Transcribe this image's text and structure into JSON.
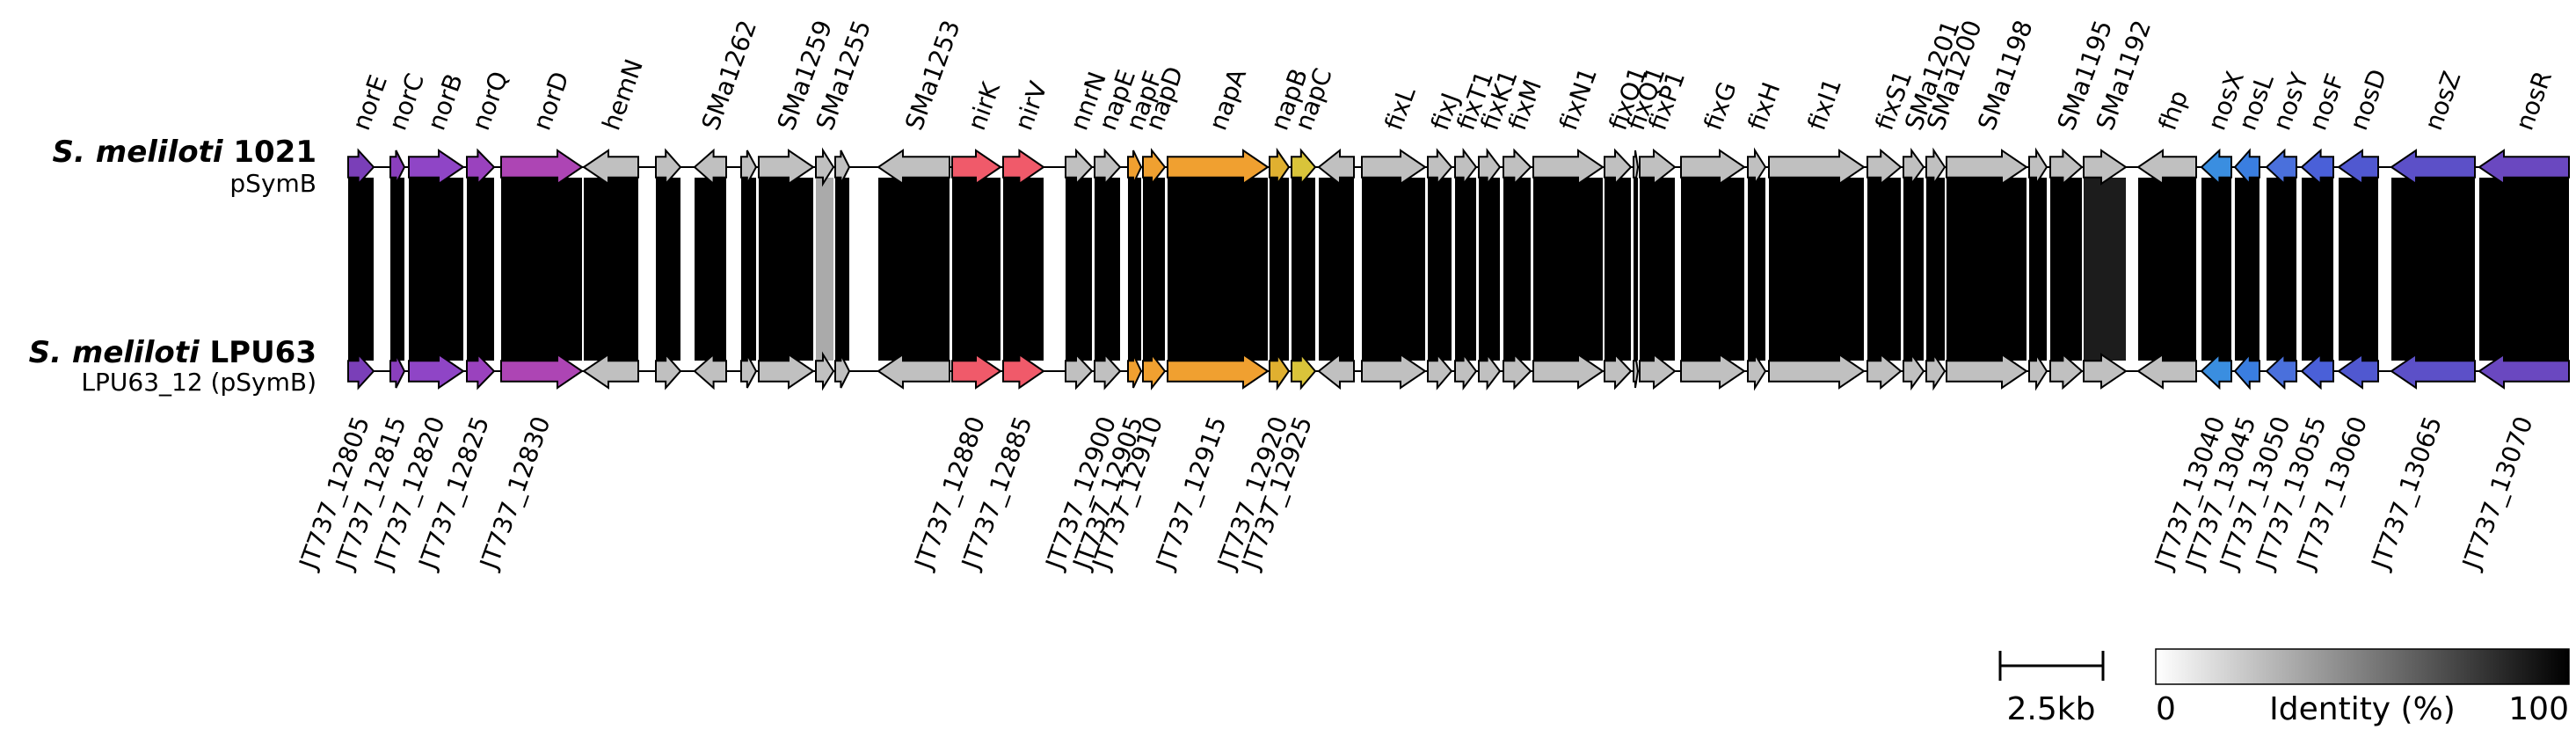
{
  "genomes": [
    {
      "name_italic": "S. meliloti",
      "name_strain": "1021",
      "subtitle": "pSymB"
    },
    {
      "name_italic": "S. meliloti",
      "name_strain": "LPU63",
      "subtitle": "LPU63_12 (pSymB)"
    }
  ],
  "genes": [
    {
      "label": "norE",
      "dir": 1,
      "color": "#7a3fb8"
    },
    {
      "label": "",
      "dir": 0,
      "color": "#ffffff"
    },
    {
      "label": "norC",
      "dir": 1,
      "color": "#8a3fbd"
    },
    {
      "label": "norB",
      "dir": 1,
      "color": "#8f45c6"
    },
    {
      "label": "norQ",
      "dir": 1,
      "color": "#9a42be"
    },
    {
      "label": "norD",
      "dir": 1,
      "color": "#ad45b4"
    },
    {
      "label": "hemN",
      "dir": -1,
      "color": "#c0c0c0"
    },
    {
      "label": "",
      "dir": 1,
      "color": "#c0c0c0"
    },
    {
      "label": "SMa1262",
      "dir": -1,
      "color": "#c0c0c0"
    },
    {
      "label": "",
      "dir": 1,
      "color": "#c0c0c0"
    },
    {
      "label": "SMa1259",
      "dir": 1,
      "color": "#c0c0c0"
    },
    {
      "label": "SMa1255",
      "dir": 1,
      "color": "#c0c0c0"
    },
    {
      "label": "",
      "dir": 1,
      "color": "#c0c0c0"
    },
    {
      "label": "SMa1253",
      "dir": -1,
      "color": "#c0c0c0"
    },
    {
      "label": "nirK",
      "dir": 1,
      "color": "#f05a6a"
    },
    {
      "label": "nirV",
      "dir": 1,
      "color": "#f05a6a"
    },
    {
      "label": "nnrN",
      "dir": 1,
      "color": "#c0c0c0"
    },
    {
      "label": "napE",
      "dir": 1,
      "color": "#c0c0c0"
    },
    {
      "label": "napF",
      "dir": 1,
      "color": "#f0a030"
    },
    {
      "label": "napD",
      "dir": 1,
      "color": "#f0a030"
    },
    {
      "label": "napA",
      "dir": 1,
      "color": "#f0a030"
    },
    {
      "label": "napB",
      "dir": 1,
      "color": "#e0b030"
    },
    {
      "label": "napC",
      "dir": 1,
      "color": "#d9c43a"
    },
    {
      "label": "",
      "dir": -1,
      "color": "#c0c0c0"
    },
    {
      "label": "fixL",
      "dir": 1,
      "color": "#c0c0c0"
    },
    {
      "label": "fixJ",
      "dir": 1,
      "color": "#c0c0c0"
    },
    {
      "label": "fixT1",
      "dir": 1,
      "color": "#c0c0c0"
    },
    {
      "label": "fixK1",
      "dir": 1,
      "color": "#c0c0c0"
    },
    {
      "label": "fixM",
      "dir": 1,
      "color": "#c0c0c0"
    },
    {
      "label": "fixN1",
      "dir": 1,
      "color": "#c0c0c0"
    },
    {
      "label": "fixO1",
      "dir": 1,
      "color": "#c0c0c0"
    },
    {
      "label": "fixQ1",
      "dir": 1,
      "color": "#c0c0c0"
    },
    {
      "label": "fixP1",
      "dir": 1,
      "color": "#c0c0c0"
    },
    {
      "label": "fixG",
      "dir": 1,
      "color": "#c0c0c0"
    },
    {
      "label": "fixH",
      "dir": 1,
      "color": "#c0c0c0"
    },
    {
      "label": "fixI1",
      "dir": 1,
      "color": "#c0c0c0"
    },
    {
      "label": "fixS1",
      "dir": 1,
      "color": "#c0c0c0"
    },
    {
      "label": "SMa1201",
      "dir": 1,
      "color": "#c0c0c0"
    },
    {
      "label": "SMa1200",
      "dir": 1,
      "color": "#c0c0c0"
    },
    {
      "label": "SMa1198",
      "dir": 1,
      "color": "#c0c0c0"
    },
    {
      "label": "",
      "dir": 1,
      "color": "#c0c0c0"
    },
    {
      "label": "SMa1195",
      "dir": 1,
      "color": "#c0c0c0"
    },
    {
      "label": "SMa1192",
      "dir": 1,
      "color": "#c0c0c0"
    },
    {
      "label": "fhp",
      "dir": -1,
      "color": "#c0c0c0"
    },
    {
      "label": "nosX",
      "dir": -1,
      "color": "#3a8ee0"
    },
    {
      "label": "nosL",
      "dir": -1,
      "color": "#3a7ee0"
    },
    {
      "label": "nosY",
      "dir": -1,
      "color": "#4a70dc"
    },
    {
      "label": "nosF",
      "dir": -1,
      "color": "#4a60d8"
    },
    {
      "label": "nosD",
      "dir": -1,
      "color": "#5058d0"
    },
    {
      "label": "nosZ",
      "dir": -1,
      "color": "#5c50c8"
    },
    {
      "label": "nosR",
      "dir": -1,
      "color": "#6a48c0"
    }
  ],
  "locus_tags": [
    {
      "label": "JT737_12805",
      "gene": 0
    },
    {
      "label": "JT737_12815",
      "gene": 2
    },
    {
      "label": "JT737_12820",
      "gene": 3
    },
    {
      "label": "JT737_12825",
      "gene": 4
    },
    {
      "label": "JT737_12830",
      "gene": 5
    },
    {
      "label": "JT737_12880",
      "gene": 14
    },
    {
      "label": "JT737_12885",
      "gene": 15
    },
    {
      "label": "JT737_12900",
      "gene": 17
    },
    {
      "label": "JT737_12905",
      "gene": 18
    },
    {
      "label": "JT737_12910",
      "gene": 19
    },
    {
      "label": "JT737_12915",
      "gene": 20
    },
    {
      "label": "JT737_12920",
      "gene": 21
    },
    {
      "label": "JT737_12925",
      "gene": 22
    },
    {
      "label": "JT737_13040",
      "gene": 44
    },
    {
      "label": "JT737_13045",
      "gene": 45
    },
    {
      "label": "JT737_13050",
      "gene": 46
    },
    {
      "label": "JT737_13055",
      "gene": 47
    },
    {
      "label": "JT737_13060",
      "gene": 48
    },
    {
      "label": "JT737_13065",
      "gene": 49
    },
    {
      "label": "JT737_13070",
      "gene": 50
    }
  ],
  "scale_bar": {
    "label": "2.5kb"
  },
  "legend": {
    "title": "Identity (%)",
    "min_label": "0",
    "max_label": "100"
  }
}
